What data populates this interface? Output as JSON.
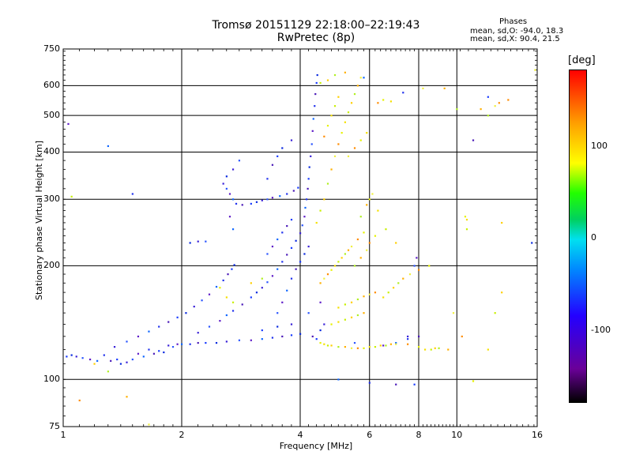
{
  "chart_data": {
    "type": "scatter",
    "title": "Tromsø 20151129 22:18:00–22:19:43",
    "subtitle": "RwPretec (8p)",
    "xlabel": "Frequency [MHz]",
    "ylabel": "Stationary phase Virtual Height [km]",
    "xscale": "log",
    "yscale": "log",
    "xlim": [
      1,
      16
    ],
    "ylim": [
      75,
      750
    ],
    "x_ticks": [
      1,
      2,
      4,
      6,
      8,
      10,
      16
    ],
    "y_ticks": [
      75,
      100,
      200,
      300,
      400,
      500,
      600,
      750
    ],
    "x_gridlines": [
      2,
      4,
      6,
      8,
      10
    ],
    "y_gridlines": [
      100,
      200,
      300,
      400,
      500,
      600
    ],
    "grid": true,
    "phase_stats": {
      "title": "Phases",
      "o_line": "mean, sd,O: -94.0, 18.3",
      "x_line": "mean, sd,X: 90.4, 21.5"
    },
    "colorbar": {
      "unit": "[deg]",
      "min": -180,
      "max": 180,
      "ticks": [
        "100",
        "0",
        "-100"
      ]
    },
    "series": [
      {
        "mode": "O",
        "points": [
          [
            1.02,
            115
          ],
          [
            1.05,
            116
          ],
          [
            1.08,
            115
          ],
          [
            1.12,
            114
          ],
          [
            1.17,
            113
          ],
          [
            1.22,
            112
          ],
          [
            1.27,
            116
          ],
          [
            1.32,
            112
          ],
          [
            1.37,
            113
          ],
          [
            1.4,
            110
          ],
          [
            1.45,
            111
          ],
          [
            1.5,
            113
          ],
          [
            1.55,
            117
          ],
          [
            1.6,
            115
          ],
          [
            1.65,
            120
          ],
          [
            1.7,
            117
          ],
          [
            1.75,
            119
          ],
          [
            1.8,
            118
          ],
          [
            1.85,
            123
          ],
          [
            1.9,
            122
          ],
          [
            1.95,
            124
          ],
          [
            2.0,
            124
          ],
          [
            2.1,
            124
          ],
          [
            2.2,
            125
          ],
          [
            2.3,
            125
          ],
          [
            2.45,
            125
          ],
          [
            2.6,
            126
          ],
          [
            2.8,
            127
          ],
          [
            3.0,
            127
          ],
          [
            3.2,
            128
          ],
          [
            3.4,
            129
          ],
          [
            3.6,
            130
          ],
          [
            3.8,
            131
          ],
          [
            4.0,
            132
          ],
          [
            1.35,
            122
          ],
          [
            1.45,
            126
          ],
          [
            1.55,
            130
          ],
          [
            1.65,
            134
          ],
          [
            1.75,
            138
          ],
          [
            1.85,
            142
          ],
          [
            1.95,
            146
          ],
          [
            2.05,
            150
          ],
          [
            2.15,
            156
          ],
          [
            2.25,
            162
          ],
          [
            2.35,
            168
          ],
          [
            2.45,
            176
          ],
          [
            2.55,
            183
          ],
          [
            2.62,
            190
          ],
          [
            2.68,
            196
          ],
          [
            2.72,
            201
          ],
          [
            2.2,
            133
          ],
          [
            2.35,
            138
          ],
          [
            2.5,
            143
          ],
          [
            2.6,
            148
          ],
          [
            2.7,
            152
          ],
          [
            2.85,
            158
          ],
          [
            3.0,
            165
          ],
          [
            3.1,
            170
          ],
          [
            3.2,
            175
          ],
          [
            3.3,
            181
          ],
          [
            3.4,
            188
          ],
          [
            3.5,
            196
          ],
          [
            3.6,
            205
          ],
          [
            3.7,
            214
          ],
          [
            3.8,
            223
          ],
          [
            3.9,
            233
          ],
          [
            4.0,
            244
          ],
          [
            4.05,
            256
          ],
          [
            4.1,
            270
          ],
          [
            4.12,
            285
          ],
          [
            4.15,
            300
          ],
          [
            4.18,
            320
          ],
          [
            4.2,
            340
          ],
          [
            4.22,
            365
          ],
          [
            4.25,
            390
          ],
          [
            4.28,
            420
          ],
          [
            4.3,
            455
          ],
          [
            4.32,
            490
          ],
          [
            4.35,
            530
          ],
          [
            4.37,
            570
          ],
          [
            4.4,
            610
          ],
          [
            4.42,
            640
          ],
          [
            2.55,
            330
          ],
          [
            2.6,
            320
          ],
          [
            2.65,
            310
          ],
          [
            2.7,
            300
          ],
          [
            2.75,
            292
          ],
          [
            2.85,
            290
          ],
          [
            3.0,
            292
          ],
          [
            3.1,
            295
          ],
          [
            3.2,
            298
          ],
          [
            3.3,
            300
          ],
          [
            3.4,
            303
          ],
          [
            3.55,
            306
          ],
          [
            3.7,
            310
          ],
          [
            3.85,
            316
          ],
          [
            3.95,
            322
          ],
          [
            2.6,
            345
          ],
          [
            2.7,
            360
          ],
          [
            2.8,
            380
          ],
          [
            2.65,
            270
          ],
          [
            2.7,
            250
          ],
          [
            3.3,
            340
          ],
          [
            3.4,
            370
          ],
          [
            3.5,
            390
          ],
          [
            3.6,
            410
          ],
          [
            3.8,
            430
          ],
          [
            3.5,
            150
          ],
          [
            3.6,
            160
          ],
          [
            3.7,
            172
          ],
          [
            3.8,
            185
          ],
          [
            3.9,
            196
          ],
          [
            4.0,
            205
          ],
          [
            4.1,
            215
          ],
          [
            4.2,
            225
          ],
          [
            3.3,
            215
          ],
          [
            3.4,
            225
          ],
          [
            3.5,
            235
          ],
          [
            3.6,
            245
          ],
          [
            3.7,
            255
          ],
          [
            3.8,
            265
          ],
          [
            2.1,
            230
          ],
          [
            2.2,
            232
          ],
          [
            2.3,
            232
          ],
          [
            1.03,
            475
          ],
          [
            1.3,
            415
          ],
          [
            1.5,
            310
          ],
          [
            4.3,
            130
          ],
          [
            4.4,
            128
          ],
          [
            4.5,
            135
          ],
          [
            4.6,
            140
          ],
          [
            5.5,
            125
          ],
          [
            6.5,
            123
          ],
          [
            7.0,
            125
          ],
          [
            7.5,
            128
          ],
          [
            8.0,
            130
          ],
          [
            3.2,
            135
          ],
          [
            3.5,
            138
          ],
          [
            3.8,
            140
          ],
          [
            4.2,
            150
          ],
          [
            4.5,
            160
          ],
          [
            5.8,
            630
          ],
          [
            7.3,
            575
          ],
          [
            11.0,
            430
          ],
          [
            12.0,
            560
          ],
          [
            15.5,
            230
          ],
          [
            7.5,
            130
          ],
          [
            7.8,
            200
          ],
          [
            7.9,
            210
          ],
          [
            5.0,
            100
          ],
          [
            6.0,
            98
          ],
          [
            7.0,
            97
          ],
          [
            7.8,
            97
          ]
        ]
      },
      {
        "mode": "X",
        "points": [
          [
            4.5,
            125
          ],
          [
            4.6,
            124
          ],
          [
            4.7,
            123
          ],
          [
            4.8,
            123
          ],
          [
            5.0,
            122
          ],
          [
            5.2,
            122
          ],
          [
            5.4,
            121
          ],
          [
            5.6,
            121
          ],
          [
            5.8,
            121
          ],
          [
            6.0,
            122
          ],
          [
            6.2,
            122
          ],
          [
            6.4,
            123
          ],
          [
            6.6,
            123
          ],
          [
            6.8,
            124
          ],
          [
            7.0,
            124
          ],
          [
            7.5,
            124
          ],
          [
            8.0,
            122
          ],
          [
            8.3,
            120
          ],
          [
            8.6,
            120
          ],
          [
            8.8,
            121
          ],
          [
            9.0,
            121
          ],
          [
            4.5,
            180
          ],
          [
            4.6,
            185
          ],
          [
            4.7,
            190
          ],
          [
            4.8,
            195
          ],
          [
            4.9,
            200
          ],
          [
            5.0,
            205
          ],
          [
            5.1,
            210
          ],
          [
            5.2,
            215
          ],
          [
            5.3,
            220
          ],
          [
            5.4,
            225
          ],
          [
            5.6,
            235
          ],
          [
            5.8,
            245
          ],
          [
            4.4,
            260
          ],
          [
            4.5,
            280
          ],
          [
            4.6,
            300
          ],
          [
            4.7,
            330
          ],
          [
            4.8,
            360
          ],
          [
            4.9,
            390
          ],
          [
            5.0,
            420
          ],
          [
            5.1,
            450
          ],
          [
            5.2,
            480
          ],
          [
            5.3,
            510
          ],
          [
            5.4,
            540
          ],
          [
            5.5,
            570
          ],
          [
            5.6,
            600
          ],
          [
            5.7,
            630
          ],
          [
            4.6,
            440
          ],
          [
            4.7,
            470
          ],
          [
            4.8,
            500
          ],
          [
            4.9,
            530
          ],
          [
            5.0,
            560
          ],
          [
            5.5,
            200
          ],
          [
            5.7,
            210
          ],
          [
            5.9,
            220
          ],
          [
            6.0,
            230
          ],
          [
            6.2,
            240
          ],
          [
            6.5,
            165
          ],
          [
            6.7,
            170
          ],
          [
            6.9,
            175
          ],
          [
            7.1,
            180
          ],
          [
            7.3,
            185
          ],
          [
            7.6,
            190
          ],
          [
            8.0,
            195
          ],
          [
            8.5,
            200
          ],
          [
            5.0,
            155
          ],
          [
            5.2,
            158
          ],
          [
            5.4,
            160
          ],
          [
            5.6,
            163
          ],
          [
            5.8,
            166
          ],
          [
            6.0,
            168
          ],
          [
            6.2,
            170
          ],
          [
            4.8,
            140
          ],
          [
            5.0,
            142
          ],
          [
            5.2,
            144
          ],
          [
            5.4,
            146
          ],
          [
            5.6,
            148
          ],
          [
            5.8,
            150
          ],
          [
            5.3,
            390
          ],
          [
            5.5,
            410
          ],
          [
            5.7,
            430
          ],
          [
            5.9,
            450
          ],
          [
            1.05,
            305
          ],
          [
            1.2,
            110
          ],
          [
            1.3,
            105
          ],
          [
            1.45,
            90
          ],
          [
            1.65,
            76
          ],
          [
            1.1,
            88
          ],
          [
            2.5,
            175
          ],
          [
            2.6,
            165
          ],
          [
            2.7,
            160
          ],
          [
            3.0,
            180
          ],
          [
            3.2,
            185
          ],
          [
            9.5,
            120
          ],
          [
            9.8,
            150
          ],
          [
            10.3,
            130
          ],
          [
            11.0,
            99
          ],
          [
            12.0,
            120
          ],
          [
            12.5,
            150
          ],
          [
            13.0,
            170
          ],
          [
            12.0,
            500
          ],
          [
            11.5,
            520
          ],
          [
            12.5,
            530
          ],
          [
            12.8,
            540
          ],
          [
            10.5,
            270
          ],
          [
            10.6,
            265
          ],
          [
            10.6,
            250
          ],
          [
            13.0,
            260
          ],
          [
            10.0,
            520
          ],
          [
            9.3,
            590
          ],
          [
            8.2,
            590
          ],
          [
            6.3,
            540
          ],
          [
            6.5,
            550
          ],
          [
            6.8,
            545
          ],
          [
            4.5,
            610
          ],
          [
            4.7,
            620
          ],
          [
            4.9,
            640
          ],
          [
            5.2,
            650
          ],
          [
            15.8,
            660
          ],
          [
            13.5,
            550
          ],
          [
            6.0,
            300
          ],
          [
            6.3,
            280
          ],
          [
            6.6,
            250
          ],
          [
            7.0,
            230
          ],
          [
            5.7,
            270
          ],
          [
            5.9,
            290
          ],
          [
            6.1,
            310
          ]
        ]
      }
    ]
  }
}
